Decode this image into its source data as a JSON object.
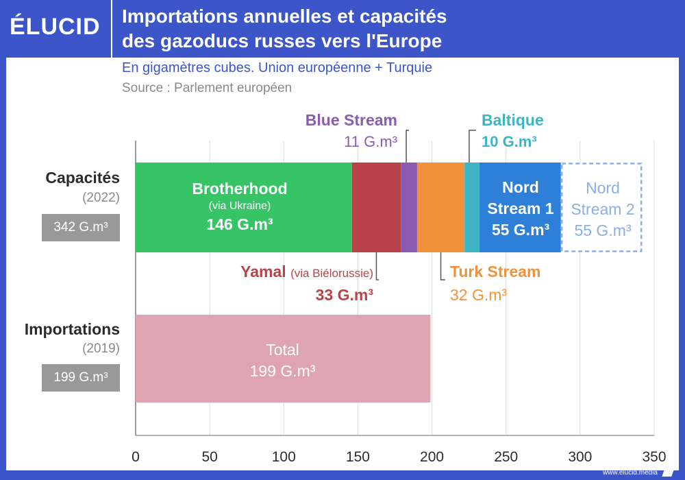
{
  "brand": "ÉLUCID",
  "title_line1": "Importations annuelles et capacités",
  "title_line2": "des gazoducs russes vers l'Europe",
  "subtitle": "En gigamètres cubes. Union européenne + Turquie",
  "source": "Source : Parlement européen",
  "footer": "www.elucid.media",
  "colors": {
    "brotherhood": "#37c467",
    "yamal": "#b84449",
    "blue_stream": "#8a5bb0",
    "turk_stream": "#f1913a",
    "baltique": "#3db4c6",
    "nord_stream_1": "#2d7fd8",
    "nord_stream_2": "#8aaee6",
    "total": "#dea4b2"
  },
  "rows": {
    "capacites": {
      "label": "Capacités",
      "year": "(2022)",
      "value": "342 G.m³"
    },
    "importations": {
      "label": "Importations",
      "year": "(2019)",
      "value": "199 G.m³"
    }
  },
  "labels": {
    "brotherhood": {
      "name": "Brotherhood",
      "sub": "(via Ukraine)",
      "value": "146 G.m³"
    },
    "yamal": {
      "name": "Yamal",
      "sub": "(via Biélorussie)",
      "value": "33 G.m³"
    },
    "blue_stream": {
      "name": "Blue Stream",
      "value": "11 G.m³"
    },
    "turk_stream": {
      "name": "Turk Stream",
      "value": "32 G.m³"
    },
    "baltique": {
      "name": "Baltique",
      "value": "10 G.m³"
    },
    "nord_stream_1": {
      "line1": "Nord",
      "line2": "Stream 1",
      "value": "55 G.m³"
    },
    "nord_stream_2": {
      "line1": "Nord",
      "line2": "Stream 2",
      "value": "55 G.m³"
    },
    "total": {
      "name": "Total",
      "value": "199 G.m³"
    }
  },
  "chart_data": {
    "type": "bar",
    "orientation": "horizontal",
    "title": "Importations annuelles et capacités des gazoducs russes vers l'Europe",
    "unit": "G.m³",
    "xlim": [
      0,
      350
    ],
    "xticks": [
      0,
      50,
      100,
      150,
      200,
      250,
      300,
      350
    ],
    "grid": true,
    "categories": [
      "Capacités (2022)",
      "Importations (2019)"
    ],
    "series": [
      {
        "name": "Brotherhood",
        "category": "Capacités (2022)",
        "value": 146,
        "color_key": "brotherhood"
      },
      {
        "name": "Yamal",
        "category": "Capacités (2022)",
        "value": 33,
        "color_key": "yamal"
      },
      {
        "name": "Blue Stream",
        "category": "Capacités (2022)",
        "value": 11,
        "color_key": "blue_stream"
      },
      {
        "name": "Turk Stream",
        "category": "Capacités (2022)",
        "value": 32,
        "color_key": "turk_stream"
      },
      {
        "name": "Baltique",
        "category": "Capacités (2022)",
        "value": 10,
        "color_key": "baltique"
      },
      {
        "name": "Nord Stream 1",
        "category": "Capacités (2022)",
        "value": 55,
        "color_key": "nord_stream_1"
      },
      {
        "name": "Nord Stream 2",
        "category": "Capacités (2022)",
        "value": 55,
        "color_key": "nord_stream_2",
        "style": "dashed"
      },
      {
        "name": "Total",
        "category": "Importations (2019)",
        "value": 199,
        "color_key": "total"
      }
    ]
  }
}
